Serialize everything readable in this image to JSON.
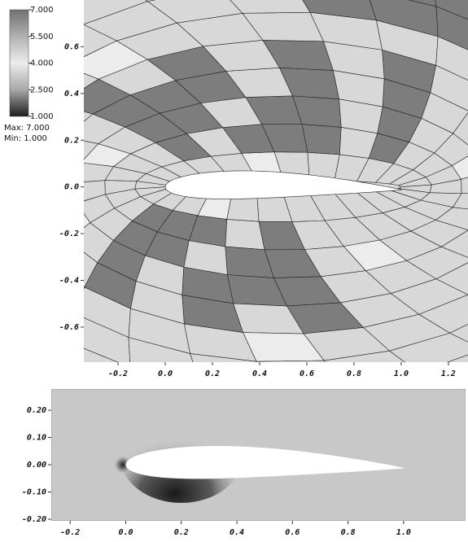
{
  "chart_data": [
    {
      "type": "mesh",
      "xlim": [
        -0.345,
        1.283
      ],
      "ylim": [
        -0.75,
        0.8
      ],
      "xticks": [
        {
          "value": -0.2,
          "label": "-0.2"
        },
        {
          "value": 0,
          "label": "0.0"
        },
        {
          "value": 0.2,
          "label": "0.2"
        },
        {
          "value": 0.4,
          "label": "0.4"
        },
        {
          "value": 0.6,
          "label": "0.6"
        },
        {
          "value": 0.8,
          "label": "0.8"
        },
        {
          "value": 1,
          "label": "1.0"
        },
        {
          "value": 1.2,
          "label": "1.2"
        }
      ],
      "yticks": [
        {
          "value": -0.6,
          "label": "-0.6"
        },
        {
          "value": -0.4,
          "label": "-0.4"
        },
        {
          "value": -0.2,
          "label": "-0.2"
        },
        {
          "value": 0,
          "label": "0.0"
        },
        {
          "value": 0.2,
          "label": "0.2"
        },
        {
          "value": 0.4,
          "label": "0.4"
        },
        {
          "value": 0.6,
          "label": "0.6"
        }
      ],
      "colorbar": {
        "lim": [
          1,
          7
        ],
        "ticks": [
          {
            "value": 7,
            "label": "7.000"
          },
          {
            "value": 5.5,
            "label": "5.500"
          },
          {
            "value": 4,
            "label": "4.000"
          },
          {
            "value": 2.5,
            "label": "2.500"
          },
          {
            "value": 1,
            "label": "1.000"
          }
        ]
      },
      "stats": [
        "Max: 7.000",
        "Min: 1.000"
      ]
    },
    {
      "type": "field",
      "xlim": [
        -0.268,
        1.223
      ],
      "ylim": [
        -0.206,
        0.278
      ],
      "xticks": [
        {
          "value": -0.2,
          "label": "-0.2"
        },
        {
          "value": 0,
          "label": "0.0"
        },
        {
          "value": 0.2,
          "label": "0.2"
        },
        {
          "value": 0.4,
          "label": "0.4"
        },
        {
          "value": 0.6,
          "label": "0.6"
        },
        {
          "value": 0.8,
          "label": "0.8"
        },
        {
          "value": 1,
          "label": "1.0"
        }
      ],
      "yticks": [
        {
          "value": -0.2,
          "label": "-0.20"
        },
        {
          "value": -0.1,
          "label": "-0.10"
        },
        {
          "value": 0,
          "label": "0.00"
        },
        {
          "value": 0.1,
          "label": "0.10"
        },
        {
          "value": 0.2,
          "label": "0.20"
        }
      ]
    }
  ]
}
